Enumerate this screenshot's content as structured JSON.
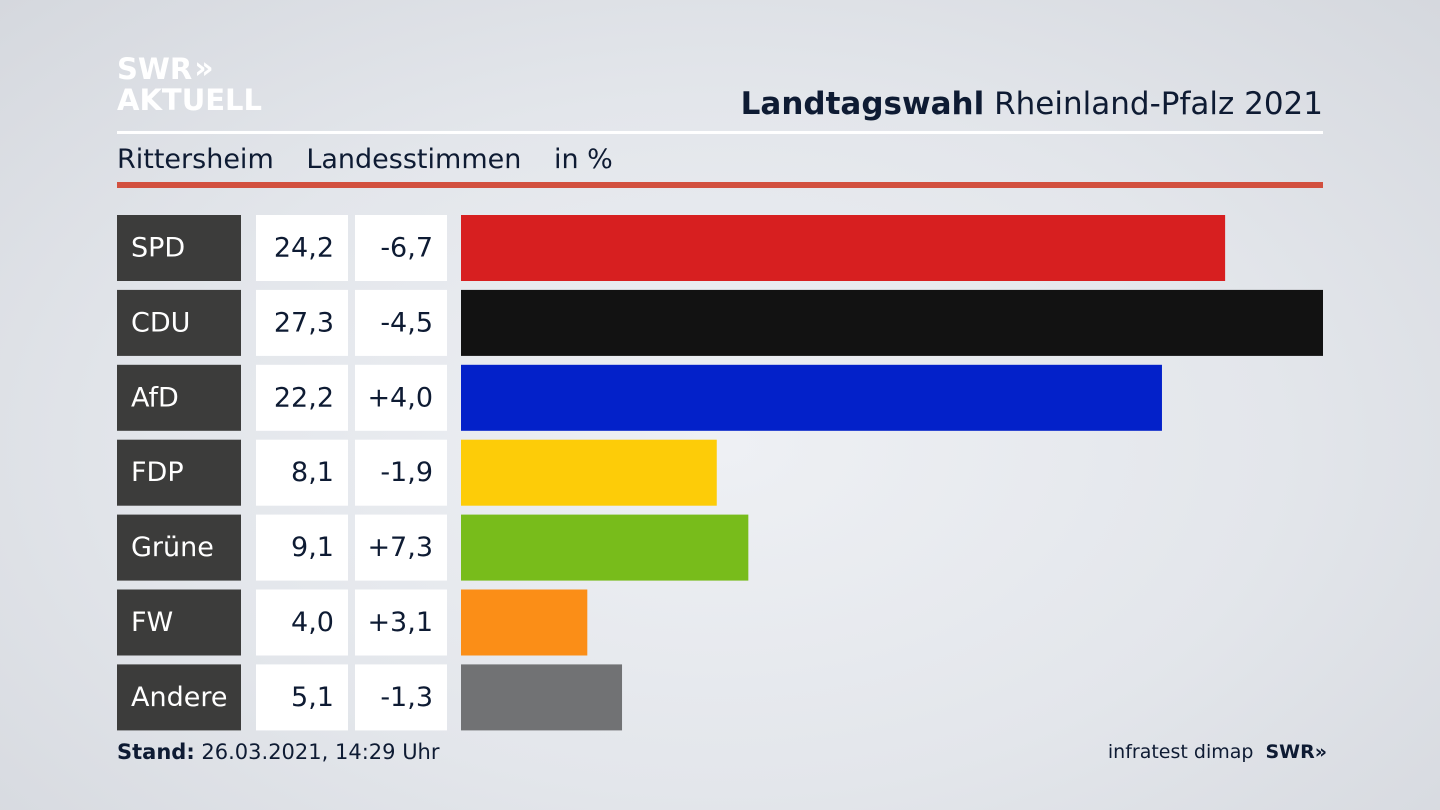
{
  "header": {
    "logo_line1": "SWR",
    "logo_chevrons": "»",
    "logo_line2": "AKTUELL",
    "title_bold": "Landtagswahl",
    "title_regular": "Rheinland-Pfalz 2021"
  },
  "subheader": {
    "place": "Rittersheim",
    "measure": "Landesstimmen",
    "unit": "in %"
  },
  "footer": {
    "stand_label": "Stand:",
    "stand_value": "26.03.2021, 14:29 Uhr",
    "source": "infratest dimap",
    "broadcaster": "SWR",
    "broadcaster_chevrons": "»"
  },
  "chart_data": {
    "type": "bar",
    "orientation": "horizontal",
    "categories": [
      "SPD",
      "CDU",
      "AfD",
      "FDP",
      "Grüne",
      "FW",
      "Andere"
    ],
    "values": [
      24.2,
      27.3,
      22.2,
      8.1,
      9.1,
      4.0,
      5.1
    ],
    "value_labels": [
      "24,2",
      "27,3",
      "22,2",
      "8,1",
      "9,1",
      "4,0",
      "5,1"
    ],
    "change_labels": [
      "-6,7",
      "-4,5",
      "+4,0",
      "-1,9",
      "+7,3",
      "+3,1",
      "-1,3"
    ],
    "colors": [
      "#d71f20",
      "#121212",
      "#0321c9",
      "#fdcc08",
      "#78bc1b",
      "#fb8e17",
      "#717274"
    ],
    "xlim": [
      0,
      27.3
    ]
  }
}
